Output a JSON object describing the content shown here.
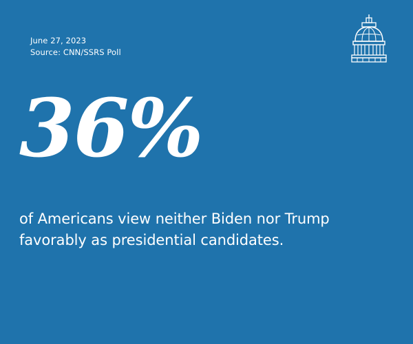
{
  "meta": {
    "date": "June 27, 2023",
    "source": "Source: CNN/SSRS Poll"
  },
  "stat": {
    "value": "36%"
  },
  "caption": {
    "line1": "of Americans view neither Biden nor Trump",
    "line2": "favorably as presidential candidates."
  },
  "logo": {
    "icon": "capitol-dome-icon"
  },
  "colors": {
    "background": "#1f73ac",
    "text": "#ffffff"
  }
}
